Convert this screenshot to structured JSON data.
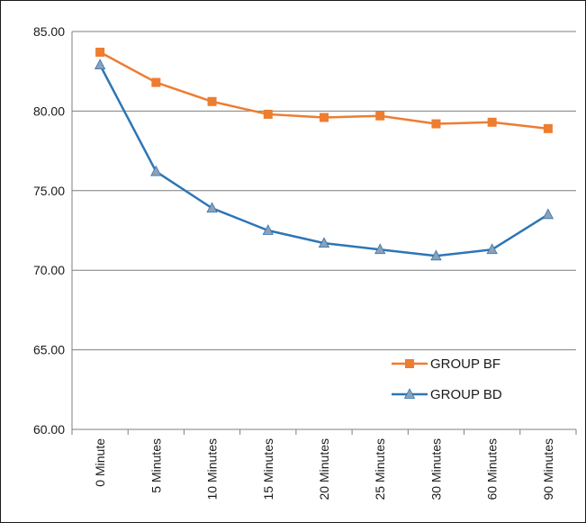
{
  "chart_data": {
    "type": "line",
    "categories": [
      "0 Minute",
      "5 Minutes",
      "10 Minutes",
      "15 Minutes",
      "20 Minutes",
      "25 Minutes",
      "30 Minutes",
      "60 Minutes",
      "90 Minutes"
    ],
    "y_ticks": [
      "60.00",
      "65.00",
      "70.00",
      "75.00",
      "80.00",
      "85.00"
    ],
    "ylim": [
      60,
      85
    ],
    "grid": true,
    "legend_position": "bottom-right",
    "series": [
      {
        "name": "GROUP BF",
        "color": "#ed7d31",
        "marker": "square",
        "values": [
          83.7,
          81.8,
          80.6,
          79.8,
          79.6,
          79.7,
          79.2,
          79.3,
          78.9
        ]
      },
      {
        "name": "GROUP BD",
        "color": "#2e75b6",
        "marker": "triangle",
        "marker_color": "#8ea0b4",
        "values": [
          82.9,
          76.2,
          73.9,
          72.5,
          71.7,
          71.3,
          70.9,
          71.3,
          73.5
        ]
      }
    ]
  }
}
